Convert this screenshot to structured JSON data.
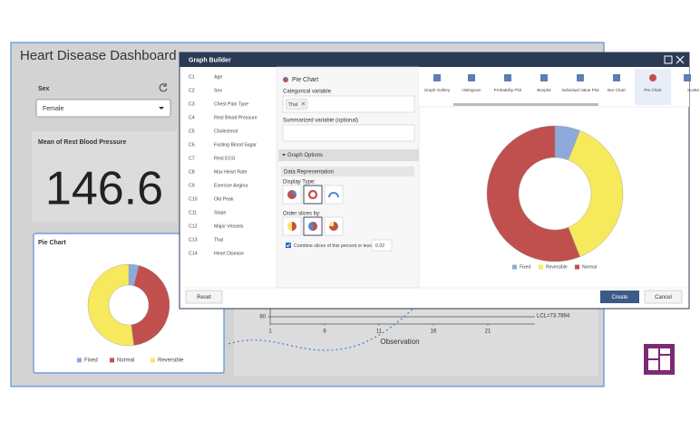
{
  "dashboard": {
    "title": "Heart Disease Dashboard",
    "filter_label": "Sex",
    "filter_value": "Female",
    "kpi_title": "Mean of Rest Blood Pressure",
    "kpi_value": "146.6",
    "pie": {
      "type": "pie",
      "title": "Pie Chart",
      "categories": [
        "Fixed",
        "Normal",
        "Reversible"
      ],
      "values": [
        4,
        44,
        52
      ],
      "colors": [
        "#8eaadb",
        "#c0504d",
        "#f7e95c"
      ],
      "donut": true
    },
    "control_chart": {
      "type": "line",
      "xlabel": "Observation",
      "xlim": [
        1,
        25
      ],
      "xticks": [
        1,
        6,
        11,
        16,
        21
      ],
      "yticks": [
        80
      ],
      "annotation": "LCL=73.7894"
    }
  },
  "dialog": {
    "title": "Graph Builder",
    "columns": [
      {
        "code": "C1",
        "name": "Age"
      },
      {
        "code": "C2",
        "name": "Sex"
      },
      {
        "code": "C3",
        "name": "Chest Pain Type"
      },
      {
        "code": "C4",
        "name": "Rest Blood Pressure"
      },
      {
        "code": "C5",
        "name": "Cholesterol"
      },
      {
        "code": "C6",
        "name": "Fasting Blood Sugar"
      },
      {
        "code": "C7",
        "name": "Rest ECG"
      },
      {
        "code": "C8",
        "name": "Max Heart Rate"
      },
      {
        "code": "C9",
        "name": "Exercise Angina"
      },
      {
        "code": "C10",
        "name": "Old Peak"
      },
      {
        "code": "C11",
        "name": "Slope"
      },
      {
        "code": "C12",
        "name": "Major Vessels"
      },
      {
        "code": "C13",
        "name": "Thal"
      },
      {
        "code": "C14",
        "name": "Heart Disease"
      }
    ],
    "panel_title": "Pie Chart",
    "categorical_label": "Categorical variable",
    "categorical_value": "Thal",
    "summarized_label": "Summarized variable (optional)",
    "options_header": "Graph Options",
    "section_header": "Data Representation",
    "display_type_label": "Display Type:",
    "order_label": "Order slices by:",
    "combine_label": "Combine slices of this percent or less:",
    "combine_value": "0.02",
    "gallery": [
      "Graph Gallery",
      "Histogram",
      "Probability Plot",
      "Boxplot",
      "Individual Value Plot",
      "Bar Chart",
      "Pie Chart",
      "Scatte"
    ],
    "preview": {
      "type": "pie",
      "categories": [
        "Fixed",
        "Reversible",
        "Normal"
      ],
      "values": [
        6,
        38,
        56
      ],
      "colors": [
        "#8eaadb",
        "#f7e95c",
        "#c0504d"
      ],
      "donut": true
    },
    "buttons": {
      "reset": "Reset",
      "create": "Create",
      "cancel": "Cancel"
    }
  }
}
